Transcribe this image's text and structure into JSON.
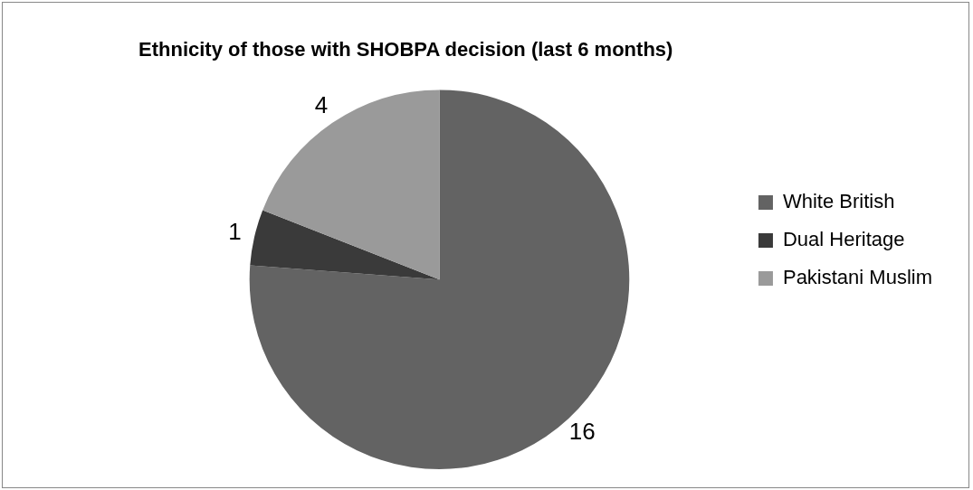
{
  "chart_data": {
    "type": "pie",
    "title": "Ethnicity of those with SHOBPA decision (last 6 months)",
    "categories": [
      "White British",
      "Dual Heritage",
      "Pakistani Muslim"
    ],
    "values": [
      16,
      1,
      4
    ],
    "colors": [
      "#636363",
      "#3a3a3a",
      "#9a9a9a"
    ],
    "data_labels": true,
    "legend": "right"
  }
}
